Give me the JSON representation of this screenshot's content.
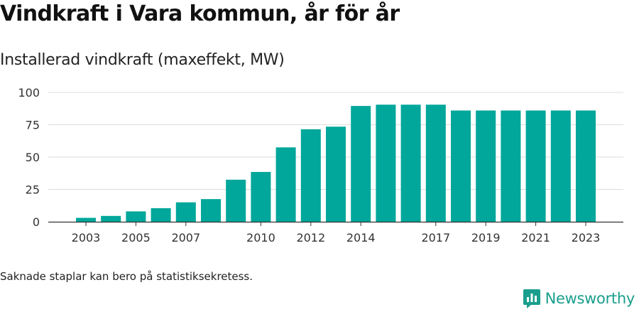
{
  "title": "Vindkraft i Vara kommun, år för år",
  "subtitle": "Installerad vindkraft (maxeffekt, MW)",
  "footnote": "Saknade staplar kan bero på statistiksekretess.",
  "brand": {
    "name": "Newsworthy",
    "icon": "newsworthy-logo-icon",
    "color": "#1a9e8c"
  },
  "chart_data": {
    "type": "bar",
    "categories": [
      "2003",
      "2004",
      "2005",
      "2006",
      "2007",
      "2008",
      "2009",
      "2010",
      "2011",
      "2012",
      "2013",
      "2014",
      "2015",
      "2016",
      "2017",
      "2018",
      "2019",
      "2020",
      "2021",
      "2022",
      "2023"
    ],
    "values": [
      3,
      4.5,
      8,
      10.5,
      15,
      17.5,
      32.5,
      38.5,
      57.5,
      71.5,
      73.5,
      89.5,
      90.5,
      90.5,
      90.5,
      86,
      86,
      86,
      86,
      86,
      86
    ],
    "x_tick_labels": [
      "2003",
      "2005",
      "2007",
      "2010",
      "2012",
      "2014",
      "2017",
      "2019",
      "2021",
      "2023"
    ],
    "x_tick_years": [
      2003,
      2005,
      2007,
      2010,
      2012,
      2014,
      2017,
      2019,
      2021,
      2023
    ],
    "y_ticks": [
      0,
      25,
      50,
      75,
      100
    ],
    "ylim": [
      0,
      100
    ],
    "xlabel": "",
    "ylabel": "",
    "grid": true,
    "bar_color": "#00a79a"
  }
}
